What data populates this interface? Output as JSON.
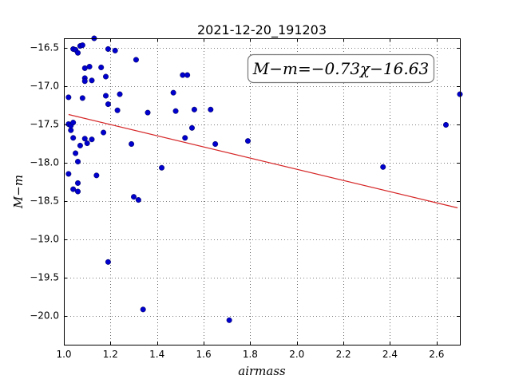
{
  "chart_data": {
    "type": "scatter",
    "title": "2021-12-20_191203",
    "xlabel": "airmass",
    "ylabel": "M−m",
    "xlim": [
      1.0,
      2.7
    ],
    "ylim": [
      -20.38,
      -16.38
    ],
    "y_inverted": true,
    "grid": true,
    "xticks": [
      1.0,
      1.2,
      1.4,
      1.6,
      1.8,
      2.0,
      2.2,
      2.4,
      2.6
    ],
    "xtick_labels": [
      "1.0",
      "1.2",
      "1.4",
      "1.6",
      "1.8",
      "2.0",
      "2.2",
      "2.4",
      "2.6"
    ],
    "yticks": [
      -16.5,
      -17.0,
      -17.5,
      -18.0,
      -18.5,
      -19.0,
      -19.5,
      -20.0
    ],
    "ytick_labels": [
      "−16.5",
      "−17.0",
      "−17.5",
      "−18.0",
      "−18.5",
      "−19.0",
      "−19.5",
      "−20.0"
    ],
    "annotation": "M−m=−0.73χ−16.63",
    "fit": {
      "slope": -0.73,
      "intercept": -16.63,
      "x_range": [
        1.02,
        2.69
      ],
      "color": "#d62728"
    },
    "marker_color": "#0000cc",
    "points": [
      [
        1.02,
        -17.15
      ],
      [
        1.02,
        -17.5
      ],
      [
        1.02,
        -18.15
      ],
      [
        1.03,
        -17.58
      ],
      [
        1.03,
        -17.52
      ],
      [
        1.04,
        -17.48
      ],
      [
        1.04,
        -17.68
      ],
      [
        1.04,
        -18.35
      ],
      [
        1.04,
        -16.52
      ],
      [
        1.05,
        -17.88
      ],
      [
        1.05,
        -16.53
      ],
      [
        1.06,
        -16.57
      ],
      [
        1.06,
        -18.27
      ],
      [
        1.06,
        -17.99
      ],
      [
        1.06,
        -18.38
      ],
      [
        1.07,
        -17.78
      ],
      [
        1.07,
        -16.48
      ],
      [
        1.08,
        -16.47
      ],
      [
        1.08,
        -17.16
      ],
      [
        1.09,
        -16.77
      ],
      [
        1.09,
        -16.9
      ],
      [
        1.09,
        -16.94
      ],
      [
        1.09,
        -17.69
      ],
      [
        1.1,
        -17.75
      ],
      [
        1.11,
        -16.75
      ],
      [
        1.12,
        -16.93
      ],
      [
        1.12,
        -17.7
      ],
      [
        1.13,
        -16.38
      ],
      [
        1.14,
        -18.17
      ],
      [
        1.16,
        -16.76
      ],
      [
        1.17,
        -17.61
      ],
      [
        1.18,
        -17.13
      ],
      [
        1.18,
        -16.88
      ],
      [
        1.19,
        -17.24
      ],
      [
        1.19,
        -16.52
      ],
      [
        1.19,
        -19.3
      ],
      [
        1.22,
        -16.54
      ],
      [
        1.23,
        -17.32
      ],
      [
        1.24,
        -17.11
      ],
      [
        1.29,
        -17.76
      ],
      [
        1.3,
        -18.45
      ],
      [
        1.31,
        -16.66
      ],
      [
        1.32,
        -18.49
      ],
      [
        1.34,
        -19.92
      ],
      [
        1.36,
        -17.35
      ],
      [
        1.42,
        -18.07
      ],
      [
        1.47,
        -17.09
      ],
      [
        1.48,
        -17.33
      ],
      [
        1.51,
        -16.86
      ],
      [
        1.52,
        -17.68
      ],
      [
        1.53,
        -16.86
      ],
      [
        1.55,
        -17.55
      ],
      [
        1.56,
        -17.31
      ],
      [
        1.63,
        -17.31
      ],
      [
        1.65,
        -17.76
      ],
      [
        1.71,
        -20.06
      ],
      [
        1.79,
        -17.72
      ],
      [
        2.37,
        -18.06
      ],
      [
        2.64,
        -17.51
      ],
      [
        2.7,
        -17.11
      ]
    ]
  }
}
